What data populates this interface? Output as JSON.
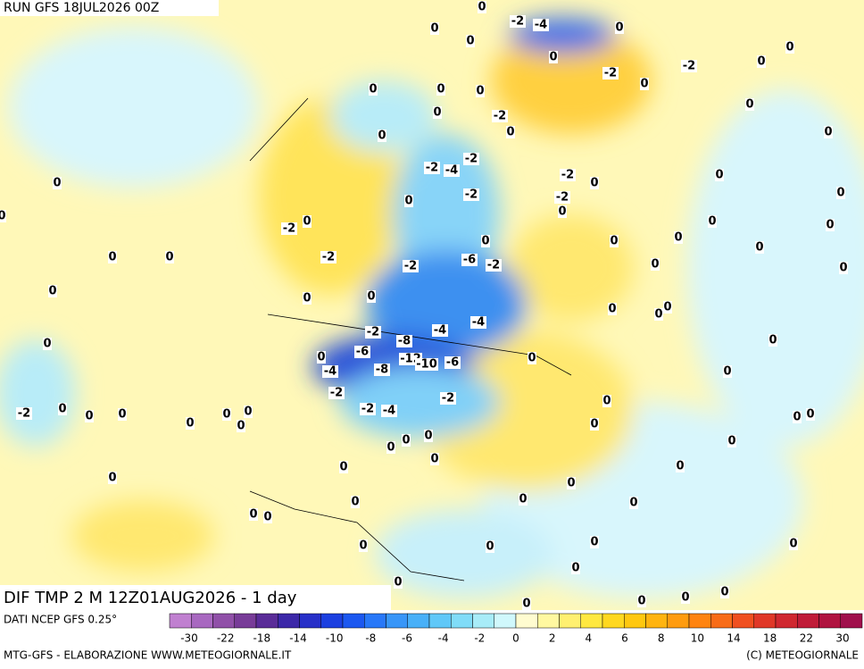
{
  "header": {
    "run": "RUN GFS 18JUL2026 00Z"
  },
  "map": {
    "title": "DIF TMP 2 M 12Z01AUG2026 - 1 day",
    "contour_labels": [
      0,
      -2,
      -4,
      0,
      0,
      0,
      0,
      0,
      -2,
      0,
      -2,
      0,
      0,
      0,
      0,
      0,
      0,
      -2,
      0,
      0,
      0,
      -2,
      -2,
      -4,
      -2,
      0,
      0,
      0,
      -2,
      -2,
      0,
      0,
      0,
      0,
      -2,
      0,
      0,
      0,
      0,
      0,
      0,
      0,
      0,
      0,
      -2,
      -2,
      -6,
      -2,
      0,
      0,
      0,
      0,
      0,
      0,
      0,
      0,
      -4,
      0,
      -2,
      -8,
      -4,
      0,
      -6,
      0,
      -12,
      -10,
      -6,
      0,
      -4,
      -8,
      0,
      -2,
      -2,
      0,
      -2,
      0,
      0,
      0,
      0,
      0,
      -2,
      -4,
      0,
      0,
      0,
      0,
      0,
      0,
      0,
      0,
      0,
      0,
      0,
      0,
      0,
      0,
      0,
      0,
      0,
      0,
      0,
      0,
      0,
      0,
      0,
      0,
      0,
      0,
      0,
      0,
      0
    ]
  },
  "colorbar": {
    "source": "DATI NCEP GFS 0.25°",
    "colors": [
      "#c080d0",
      "#a868c0",
      "#9050a8",
      "#783c98",
      "#5a2c98",
      "#3c28a8",
      "#2830c8",
      "#1c40e0",
      "#1c58f0",
      "#2878f8",
      "#3896f8",
      "#48b0f8",
      "#60c8f8",
      "#80dcf8",
      "#a8ecf8",
      "#d0f8fc",
      "#fffcd0",
      "#fff8a0",
      "#fff070",
      "#ffe840",
      "#ffd820",
      "#ffc810",
      "#ffb410",
      "#ff9c10",
      "#ff8410",
      "#f86c18",
      "#f05020",
      "#e03828",
      "#d02830",
      "#c01c38",
      "#b01440",
      "#a0104c"
    ],
    "labels": [
      -30,
      -22,
      -18,
      -14,
      -10,
      -8,
      -6,
      -4,
      -2,
      0,
      2,
      4,
      6,
      8,
      10,
      14,
      18,
      22,
      30
    ]
  },
  "footer": {
    "credit": "MTG-GFS - ELABORAZIONE WWW.METEOGIORNALE.IT",
    "copyright": "(C) METEOGIORNALE"
  }
}
